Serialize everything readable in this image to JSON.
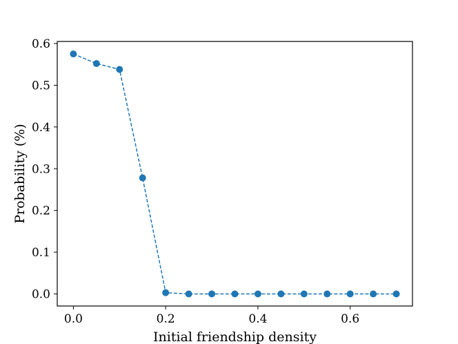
{
  "chart_data": {
    "type": "line",
    "title": "",
    "xlabel": "Initial friendship density",
    "ylabel": "Probability (%)",
    "xlim": [
      -0.035,
      0.735
    ],
    "ylim": [
      -0.029,
      0.605
    ],
    "xticks": [
      0.0,
      0.2,
      0.4,
      0.6
    ],
    "xtick_labels": [
      "0.0",
      "0.2",
      "0.4",
      "0.6"
    ],
    "yticks": [
      0.0,
      0.1,
      0.2,
      0.3,
      0.4,
      0.5,
      0.6
    ],
    "ytick_labels": [
      "0.0",
      "0.1",
      "0.2",
      "0.3",
      "0.4",
      "0.5",
      "0.6"
    ],
    "grid": false,
    "legend": "none",
    "series": [
      {
        "color": "#1f77b4",
        "line_style": "dashed",
        "marker": "circle",
        "x": [
          0.0,
          0.05,
          0.1,
          0.15,
          0.2,
          0.25,
          0.3,
          0.35,
          0.4,
          0.45,
          0.5,
          0.55,
          0.6,
          0.65,
          0.7
        ],
        "y": [
          0.575,
          0.552,
          0.538,
          0.278,
          0.003,
          0.0,
          0.0,
          0.0,
          0.0,
          0.0,
          0.0,
          0.0,
          0.0,
          0.0,
          0.0
        ]
      }
    ]
  }
}
